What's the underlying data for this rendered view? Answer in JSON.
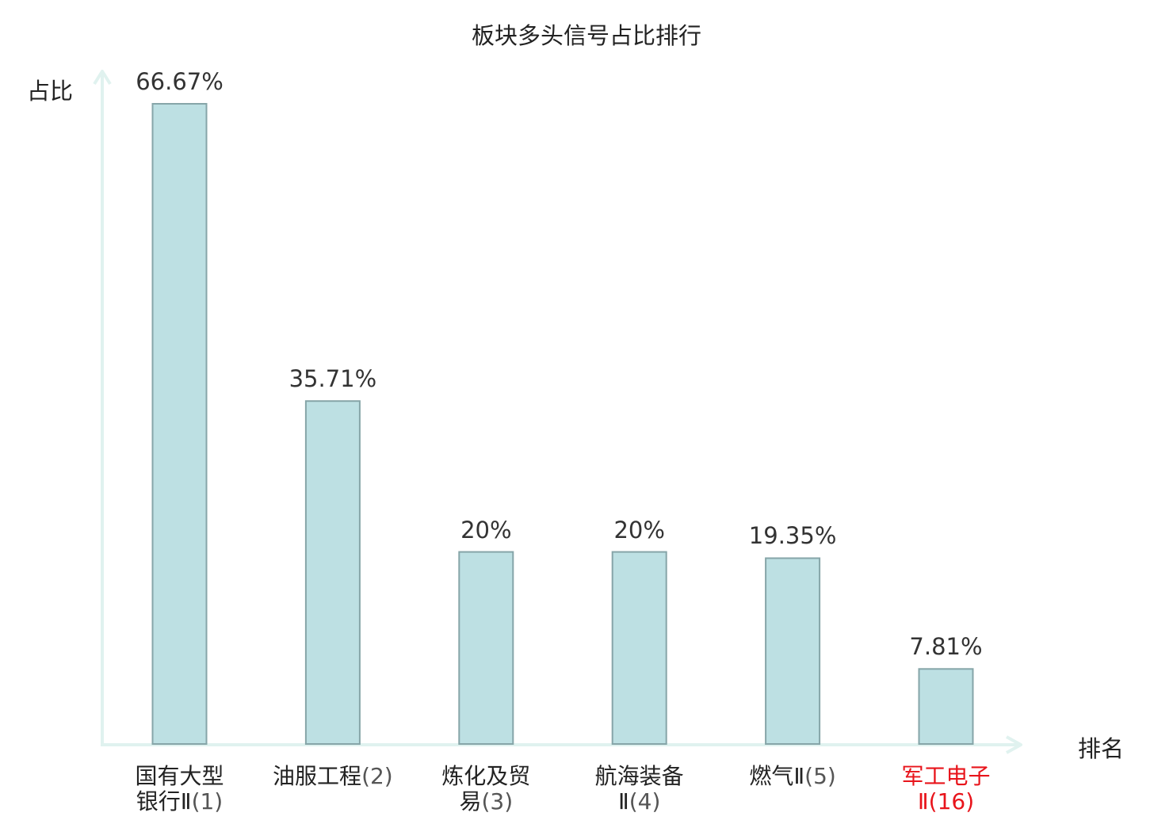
{
  "chart_data": {
    "type": "bar",
    "title": "板块多头信号占比排行",
    "ylabel": "占比",
    "xlabel": "排名",
    "categories": [
      {
        "name": "国有大型银行Ⅱ",
        "name_lines": [
          "国有大型",
          "银行Ⅱ"
        ],
        "rank": "(1)",
        "highlight": false
      },
      {
        "name": "油服工程",
        "name_lines": [
          "油服工程"
        ],
        "rank": "(2)",
        "highlight": false
      },
      {
        "name": "炼化及贸易",
        "name_lines": [
          "炼化及贸",
          "易"
        ],
        "rank": "(3)",
        "highlight": false
      },
      {
        "name": "航海装备Ⅱ",
        "name_lines": [
          "航海装备",
          "Ⅱ"
        ],
        "rank": "(4)",
        "highlight": false
      },
      {
        "name": "燃气Ⅱ",
        "name_lines": [
          "燃气Ⅱ"
        ],
        "rank": "(5)",
        "highlight": false
      },
      {
        "name": "军工电子Ⅱ",
        "name_lines": [
          "军工电子",
          "Ⅱ"
        ],
        "rank": "(16)",
        "highlight": true
      }
    ],
    "values": [
      66.67,
      35.71,
      20,
      20,
      19.35,
      7.81
    ],
    "value_labels": [
      "66.67%",
      "35.71%",
      "20%",
      "20%",
      "19.35%",
      "7.81%"
    ],
    "ylim": [
      0,
      66.67
    ],
    "grid": false,
    "colors": {
      "bar_fill": "#bde0e3",
      "bar_stroke": "#86a5a8",
      "axis": "#e0f2ef",
      "highlight_label": "#e8141b"
    }
  }
}
